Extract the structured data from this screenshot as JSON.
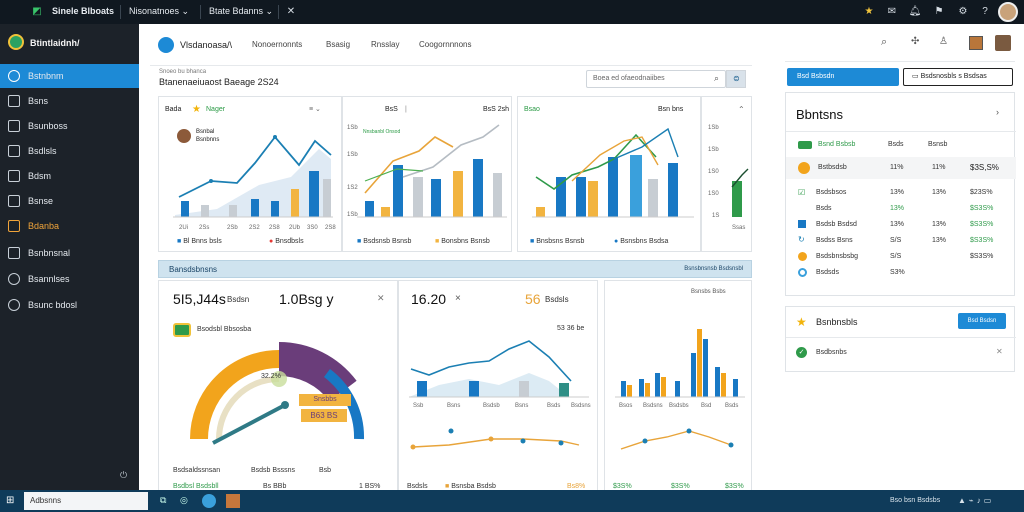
{
  "topbar": {
    "app_name": "Sinele Blboats",
    "menu1": "Nisonatnoes",
    "menu2": "Btate Bdanns"
  },
  "sidebar": {
    "brand": "Btintlaidnh/",
    "items": [
      {
        "label": "Bstnbnm",
        "icon": "home-icon",
        "active": true
      },
      {
        "label": "Bsns",
        "icon": "folder-icon"
      },
      {
        "label": "Bsunboss",
        "icon": "grid-icon"
      },
      {
        "label": "Bsdlsls",
        "icon": "table-icon"
      },
      {
        "label": "Bdsm",
        "icon": "document-icon"
      },
      {
        "label": "Bsnse",
        "icon": "chart-icon"
      },
      {
        "label": "Bdanba",
        "icon": "calendar-icon",
        "highlight": true
      },
      {
        "label": "Bsnbnsnal",
        "icon": "message-icon"
      },
      {
        "label": "Bsannlses",
        "icon": "users-icon"
      },
      {
        "label": "Bsunc bdosl",
        "icon": "settings-icon"
      }
    ]
  },
  "main": {
    "nav": [
      "Vlsdanoasa/\\",
      "Nonoernonnts",
      "Bsasig",
      "Rnsslay",
      "Coogornnnons"
    ],
    "breadcrumb": "Snoeo bu bhanca",
    "page_title": "Btanenaeiuaost Baeage 2S24",
    "search_placeholder": "Boea ed ofaeodnaiibes",
    "cards": {
      "c1": {
        "title": "Bada",
        "badge": "Nager",
        "user_line1": "Bsnbal",
        "user_line2": "Bsnbnns",
        "xticks": [
          "2Ui",
          "2Ss",
          "2Sb",
          "2S2",
          "2S8",
          "2Ub",
          "3S0",
          "2S8"
        ],
        "legend1": "Bl Bnns bsls",
        "legend2": "Bnsdbsls"
      },
      "c2": {
        "title": "BsS",
        "right": "BsS 2sh",
        "legend_title": "Nnsbanbl Onsod",
        "yticks": [
          "1Sb",
          "1Sb",
          "1S2",
          "1Sb"
        ],
        "legend1": "Bsdsnsb Bsnsb",
        "legend2": "Bonsbns Bsnsb"
      },
      "c3": {
        "title": "Bsao",
        "right": "Bsn bns",
        "legend1": "Bnsbsns Bsnsb",
        "legend2": "Bsnsbns Bsdsa"
      },
      "c4": {
        "yticks": [
          "1Sb",
          "1Sb",
          "1S0",
          "1S0",
          "1S"
        ],
        "xtick": "Ssas"
      }
    },
    "section_title": "Bansdsbnsns",
    "section_right": "Bsnsbnsnsb Bsdsnsbl",
    "kpi": {
      "k1_value": "5I5,J44s",
      "k1_unit": "Bsdsn",
      "k2_value": "1.0Bsg y",
      "k3_value": "16.20",
      "k4_value": "56",
      "k4_label": "Bsdsls",
      "small_value": "53 36 be",
      "gauge_title": "Bsodsbl Bbsosba",
      "gauge_pct": "32.2%",
      "gauge_box1": "Snsbbs",
      "gauge_box2": "B63 BS",
      "gauge_legend1": "Bsdsaldssnsan",
      "gauge_legend2": "Bsdsb Bsssns",
      "gauge_legend3": "Bsb",
      "foot1": "Bsdbsl Bsdsbll",
      "foot2": "Bs BBb",
      "foot3": "1 BS%",
      "line_ticks": [
        "Ssb",
        "Bsns",
        "Bsdsb",
        "Bsns",
        "Bsds",
        "Bsdsns"
      ],
      "line_foot1": "Bsdsls",
      "line_foot2": "Bsnsba Bsdsb",
      "line_foot3": "Bs8%",
      "bar_ticks": [
        "Bsos",
        "Bsdsns",
        "Bsdsbs",
        "Bsd",
        "Bsds"
      ],
      "bar_foot1": "$3S%",
      "bar_foot2": "$3S%",
      "bar_foot3": "$3S%",
      "bar_header": "Bsnsbs Bsbs"
    }
  },
  "right": {
    "btn_primary": "Bsd Bsbsdn",
    "btn_secondary": "Bsdsnosbls s Bsdsas",
    "title": "Bbntsns",
    "col1": "Bsds",
    "col2": "Bsnsb",
    "green_item": "Bsnd Bsbsb",
    "row_head": {
      "label": "Bstbsdsb",
      "v1": "11%",
      "v2": "11%",
      "v3": "$3S,S%"
    },
    "rows": [
      {
        "label": "Bsdsbsos",
        "v1": "13%",
        "v2": "13%",
        "v3": "$23S%"
      },
      {
        "label": "Bsds",
        "v1": "13%",
        "v2": "",
        "v3": "$S3S%"
      },
      {
        "label": "Bsdsb Bsdsd",
        "v1": "13%",
        "v2": "13%",
        "v3": "$S3S%"
      },
      {
        "label": "Bsdss Bsns",
        "v1": "S/S",
        "v2": "13%",
        "v3": "$S3S%"
      },
      {
        "label": "Bsdsbnsbsbg",
        "v1": "S/S",
        "v2": "",
        "v3": "$S3S%"
      },
      {
        "label": "Bsdsds",
        "v1": "S3%",
        "v2": "",
        "v3": ""
      }
    ],
    "card2_title": "Bsnbnsbls",
    "card2_btn": "Bsd Bsdsn",
    "card2_item": "Bsdbsnbs"
  },
  "taskbar": {
    "search": "Adbsnns",
    "tray_text": "Bso bsn Bsdsbs"
  }
}
